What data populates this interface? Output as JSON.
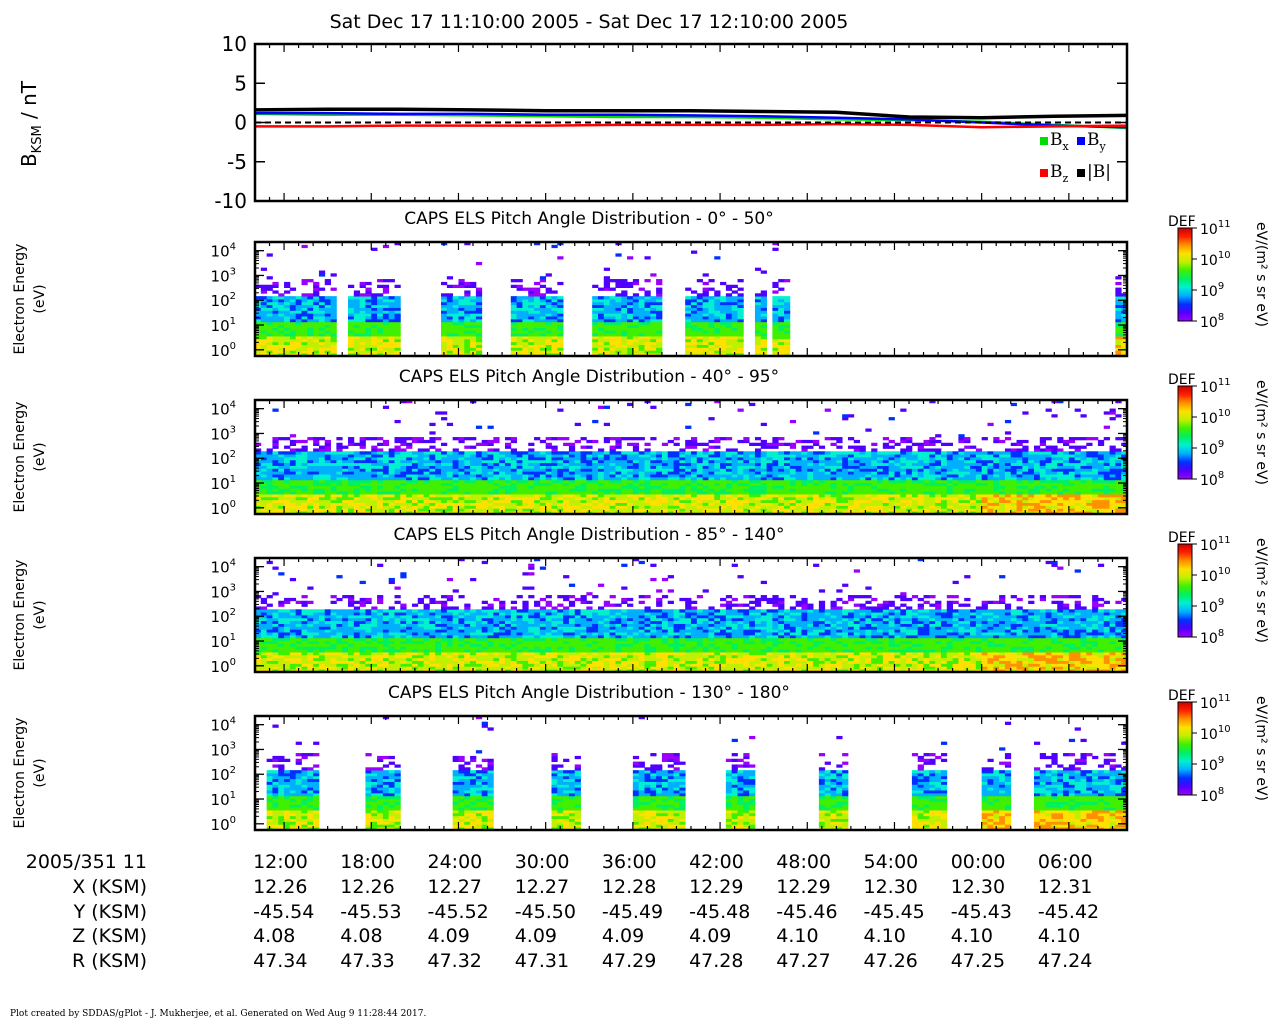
{
  "title": "Sat Dec 17 11:10:00 2005 - Sat Dec 17 12:10:00 2005",
  "footer": "Plot created by SDDAS/gPlot - J. Mukherjee, et al.  Generated on Wed Aug 9 11:28:44 2017.",
  "colors": {
    "bx": "#00dd00",
    "by": "#0000ff",
    "bz": "#ff0000",
    "btot": "#000000",
    "colorbar": [
      "#9b00ff",
      "#5000ff",
      "#0030ff",
      "#00b0ff",
      "#00f0d0",
      "#00f060",
      "#40f000",
      "#c0f000",
      "#ffe000",
      "#ff9000",
      "#ff2000",
      "#cc0000"
    ]
  },
  "chart_data": [
    {
      "type": "line",
      "ylabel_main": "B",
      "ylabel_sub": "KSM",
      "ylabel_unit": " / nT",
      "ylim": [
        -10,
        10
      ],
      "yticks": [
        "10",
        "5",
        "0",
        "-5",
        "-10"
      ],
      "zero_line": "dashed",
      "x_minutes": [
        0,
        5,
        10,
        15,
        20,
        25,
        30,
        35,
        40,
        45,
        50,
        55,
        60
      ],
      "series": [
        {
          "name": "B",
          "sub": "x",
          "color": "#00dd00",
          "values": [
            1.1,
            1.0,
            1.0,
            0.9,
            0.8,
            0.7,
            0.7,
            0.6,
            0.4,
            0.3,
            0.1,
            -0.3,
            -0.7
          ]
        },
        {
          "name": "B",
          "sub": "y",
          "color": "#0000ff",
          "values": [
            1.2,
            1.2,
            1.1,
            1.1,
            1.0,
            1.0,
            0.9,
            0.8,
            0.6,
            0.4,
            0.0,
            -0.4,
            -0.6
          ]
        },
        {
          "name": "B",
          "sub": "z",
          "color": "#ff0000",
          "values": [
            -0.5,
            -0.5,
            -0.4,
            -0.4,
            -0.4,
            -0.3,
            -0.3,
            -0.3,
            -0.2,
            -0.3,
            -0.6,
            -0.5,
            -0.4
          ]
        },
        {
          "name": "|B|",
          "sub": "",
          "color": "#000000",
          "values": [
            1.6,
            1.7,
            1.7,
            1.6,
            1.5,
            1.5,
            1.5,
            1.4,
            1.3,
            0.7,
            0.6,
            0.8,
            0.9
          ]
        }
      ]
    },
    {
      "type": "heatmap",
      "title": "CAPS ELS Pitch Angle Distribution - 0° - 50°",
      "ylabel": "Electron Energy",
      "yunit": "(eV)",
      "yticks": [
        {
          "b": "10",
          "e": "4"
        },
        {
          "b": "10",
          "e": "3"
        },
        {
          "b": "10",
          "e": "2"
        },
        {
          "b": "10",
          "e": "1"
        },
        {
          "b": "10",
          "e": "0"
        }
      ],
      "colorbar": {
        "label": "DEF",
        "unit": "eV/(m² s sr eV)",
        "ticks": [
          {
            "b": "10",
            "e": "11"
          },
          {
            "b": "10",
            "e": "10"
          },
          {
            "b": "10",
            "e": "9"
          },
          {
            "b": "10",
            "e": "8"
          }
        ]
      },
      "coverage_minutes": [
        [
          0,
          5.5
        ],
        [
          6.5,
          10.2
        ],
        [
          12.8,
          15.5
        ],
        [
          17.6,
          21.4
        ],
        [
          23.4,
          27.8
        ],
        [
          29.5,
          33.8
        ],
        [
          34.4,
          35.2
        ],
        [
          35.5,
          36.8
        ],
        [
          59.2,
          60.0
        ]
      ],
      "top_edge": 2.2
    },
    {
      "type": "heatmap",
      "title": "CAPS ELS Pitch Angle Distribution - 40° - 95°",
      "ylabel": "Electron Energy",
      "yunit": "(eV)",
      "yticks": [
        {
          "b": "10",
          "e": "4"
        },
        {
          "b": "10",
          "e": "3"
        },
        {
          "b": "10",
          "e": "2"
        },
        {
          "b": "10",
          "e": "1"
        },
        {
          "b": "10",
          "e": "0"
        }
      ],
      "colorbar": {
        "label": "DEF",
        "unit": "eV/(m² s sr eV)",
        "ticks": [
          {
            "b": "10",
            "e": "11"
          },
          {
            "b": "10",
            "e": "10"
          },
          {
            "b": "10",
            "e": "9"
          },
          {
            "b": "10",
            "e": "8"
          }
        ]
      },
      "coverage_minutes": [
        [
          0,
          60
        ]
      ],
      "top_edge": 2.3
    },
    {
      "type": "heatmap",
      "title": "CAPS ELS Pitch Angle Distribution - 85° - 140°",
      "ylabel": "Electron Energy",
      "yunit": "(eV)",
      "yticks": [
        {
          "b": "10",
          "e": "4"
        },
        {
          "b": "10",
          "e": "3"
        },
        {
          "b": "10",
          "e": "2"
        },
        {
          "b": "10",
          "e": "1"
        },
        {
          "b": "10",
          "e": "0"
        }
      ],
      "colorbar": {
        "label": "DEF",
        "unit": "eV/(m² s sr eV)",
        "ticks": [
          {
            "b": "10",
            "e": "11"
          },
          {
            "b": "10",
            "e": "10"
          },
          {
            "b": "10",
            "e": "9"
          },
          {
            "b": "10",
            "e": "8"
          }
        ]
      },
      "coverage_minutes": [
        [
          0,
          60
        ]
      ],
      "top_edge": 2.3
    },
    {
      "type": "heatmap",
      "title": "CAPS ELS Pitch Angle Distribution - 130° - 180°",
      "ylabel": "Electron Energy",
      "yunit": "(eV)",
      "yticks": [
        {
          "b": "10",
          "e": "4"
        },
        {
          "b": "10",
          "e": "3"
        },
        {
          "b": "10",
          "e": "2"
        },
        {
          "b": "10",
          "e": "1"
        },
        {
          "b": "10",
          "e": "0"
        }
      ],
      "colorbar": {
        "label": "DEF",
        "unit": "eV/(m² s sr eV)",
        "ticks": [
          {
            "b": "10",
            "e": "11"
          },
          {
            "b": "10",
            "e": "10"
          },
          {
            "b": "10",
            "e": "9"
          },
          {
            "b": "10",
            "e": "8"
          }
        ]
      },
      "coverage_minutes": [
        [
          0.8,
          4.2
        ],
        [
          7.6,
          10.1
        ],
        [
          13.8,
          16.3
        ],
        [
          20.4,
          22.5
        ],
        [
          26.0,
          29.5
        ],
        [
          32.3,
          34.2
        ],
        [
          39.0,
          40.7
        ],
        [
          45.1,
          47.6
        ],
        [
          50.0,
          52.0
        ],
        [
          53.5,
          55.5
        ],
        [
          55.8,
          58.5
        ],
        [
          58.6,
          60.0
        ]
      ],
      "top_edge": 2.2
    }
  ],
  "axis": {
    "row_labels": [
      "2005/351 11",
      "X (KSM)",
      "Y (KSM)",
      "Z (KSM)",
      "R (KSM)"
    ],
    "x_minutes": [
      12,
      18,
      24,
      30,
      36,
      42,
      48,
      54,
      60,
      66
    ],
    "times": [
      "12:00",
      "18:00",
      "24:00",
      "30:00",
      "36:00",
      "42:00",
      "48:00",
      "54:00",
      "00:00",
      "06:00"
    ],
    "X": [
      "12.26",
      "12.26",
      "12.27",
      "12.27",
      "12.28",
      "12.29",
      "12.29",
      "12.30",
      "12.30",
      "12.31"
    ],
    "Y": [
      "-45.54",
      "-45.53",
      "-45.52",
      "-45.50",
      "-45.49",
      "-45.48",
      "-45.46",
      "-45.45",
      "-45.43",
      "-45.42"
    ],
    "Z": [
      "4.08",
      "4.08",
      "4.09",
      "4.09",
      "4.09",
      "4.09",
      "4.10",
      "4.10",
      "4.10",
      "4.10"
    ],
    "R": [
      "47.34",
      "47.33",
      "47.32",
      "47.31",
      "47.29",
      "47.28",
      "47.27",
      "47.26",
      "47.25",
      "47.24"
    ]
  }
}
